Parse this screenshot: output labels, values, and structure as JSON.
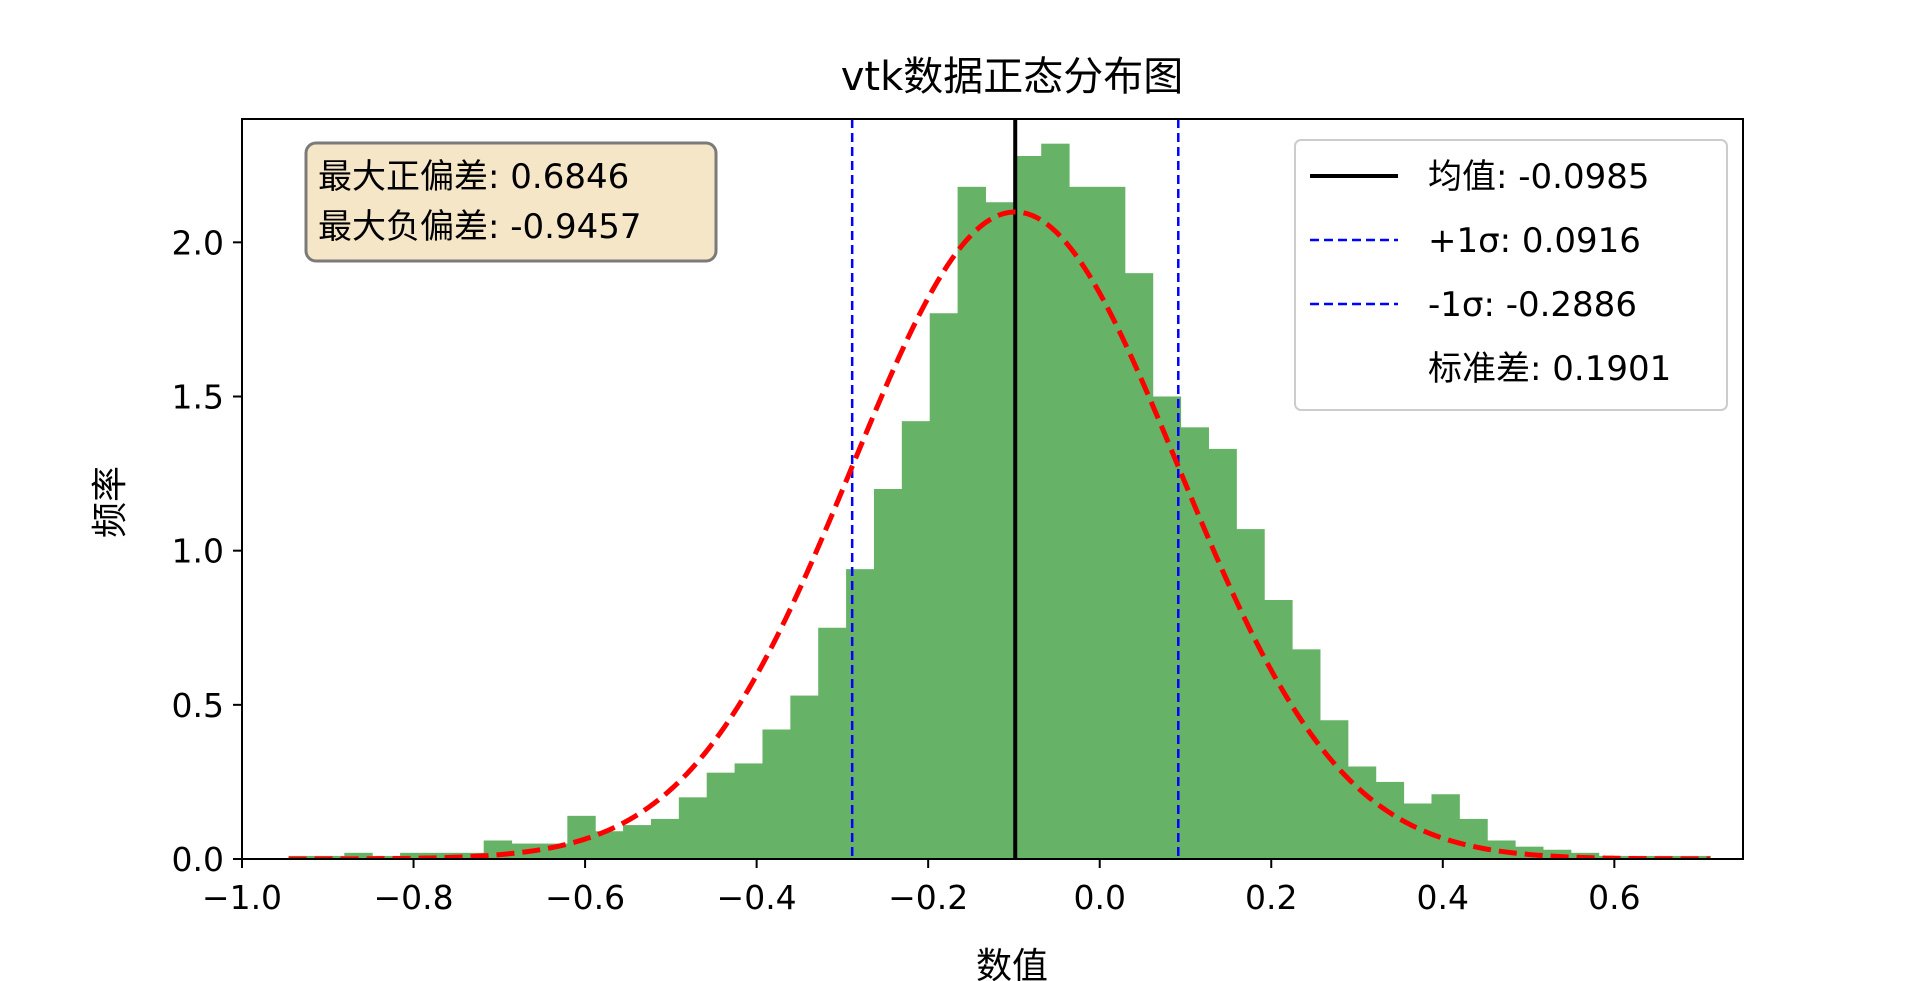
{
  "chart_data": {
    "type": "bar",
    "title": "vtk数据正态分布图",
    "xlabel": "数值",
    "ylabel": "频率",
    "xlim": [
      -1.0,
      0.75
    ],
    "ylim": [
      0,
      2.4
    ],
    "x_ticks": [
      -1.0,
      -0.8,
      -0.6,
      -0.4,
      -0.2,
      0.0,
      0.2,
      0.4,
      0.6
    ],
    "x_tick_labels": [
      "−1.0",
      "−0.8",
      "−0.6",
      "−0.4",
      "−0.2",
      "0.0",
      "0.2",
      "0.4",
      "0.6"
    ],
    "y_ticks": [
      0.0,
      0.5,
      1.0,
      1.5,
      2.0
    ],
    "y_tick_labels": [
      "0.0",
      "0.5",
      "1.0",
      "1.5",
      "2.0"
    ],
    "histogram": {
      "color": "#66b266",
      "bin_start": -0.9457,
      "bin_width": 0.0325,
      "values": [
        0.01,
        0.01,
        0.02,
        0.01,
        0.02,
        0.02,
        0.02,
        0.06,
        0.05,
        0.05,
        0.14,
        0.09,
        0.11,
        0.13,
        0.2,
        0.28,
        0.31,
        0.42,
        0.53,
        0.75,
        0.94,
        1.2,
        1.42,
        1.77,
        2.18,
        2.13,
        2.28,
        2.32,
        2.18,
        2.18,
        1.9,
        1.5,
        1.4,
        1.33,
        1.07,
        0.84,
        0.68,
        0.45,
        0.3,
        0.25,
        0.18,
        0.21,
        0.13,
        0.06,
        0.04,
        0.03,
        0.02,
        0.01,
        0.01,
        0.01,
        0.01
      ]
    },
    "normal_fit": {
      "mean": -0.0985,
      "std": 0.1901,
      "color": "#ff0000",
      "style": "dashed"
    },
    "vlines": [
      {
        "x": -0.0985,
        "color": "#000000",
        "style": "solid"
      },
      {
        "x": 0.0916,
        "color": "#0000ff",
        "style": "dashed"
      },
      {
        "x": -0.2886,
        "color": "#0000ff",
        "style": "dashed"
      }
    ],
    "legend": {
      "placement": "top-right",
      "entries": [
        {
          "label": "均值: -0.0985",
          "color": "#000000",
          "style": "solid"
        },
        {
          "label": "+1σ: 0.0916",
          "color": "#0000ff",
          "style": "dashed"
        },
        {
          "label": "-1σ: -0.2886",
          "color": "#0000ff",
          "style": "dashed"
        },
        {
          "label": "标准差: 0.1901",
          "color": "none",
          "style": "none"
        }
      ]
    },
    "annotation": {
      "placement": "top-left",
      "background": "#f5e6c8",
      "lines": [
        "最大正偏差: 0.6846",
        "最大负偏差: -0.9457"
      ]
    }
  }
}
